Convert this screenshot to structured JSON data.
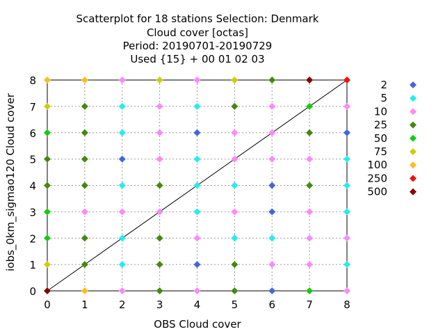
{
  "chart_data": {
    "type": "scatter",
    "title": [
      "Scatterplot for   18 stations Selection: Denmark",
      "Cloud cover [octas]",
      "Period: 20190701-20190729",
      "Used {15} + 00 01 02 03"
    ],
    "xlabel": "OBS Cloud cover",
    "ylabel": "iobs_0km_sigmao120 Cloud cover",
    "xlim": [
      0,
      8
    ],
    "ylim": [
      0,
      8
    ],
    "xticks": [
      0,
      1,
      2,
      3,
      4,
      5,
      6,
      7,
      8
    ],
    "yticks": [
      0,
      1,
      2,
      3,
      4,
      5,
      6,
      7,
      8
    ],
    "grid": true,
    "diagonal_line": true,
    "legend_position": "right",
    "legend": [
      {
        "label": "2",
        "color": "#4466dd"
      },
      {
        "label": "5",
        "color": "#22eeee"
      },
      {
        "label": "10",
        "color": "#ff88ff"
      },
      {
        "label": "25",
        "color": "#448811"
      },
      {
        "label": "50",
        "color": "#11cc11"
      },
      {
        "label": "75",
        "color": "#cccc11"
      },
      {
        "label": "100",
        "color": "#ffbb22"
      },
      {
        "label": "250",
        "color": "#ee1111"
      },
      {
        "label": "500",
        "color": "#880000"
      }
    ],
    "points": [
      [
        0,
        8,
        6
      ],
      [
        0,
        7,
        5
      ],
      [
        0,
        6,
        4
      ],
      [
        0,
        5,
        3
      ],
      [
        0,
        4,
        3
      ],
      [
        0,
        3,
        4
      ],
      [
        0,
        2,
        4
      ],
      [
        0,
        1,
        5
      ],
      [
        0,
        0,
        8
      ],
      [
        1,
        8,
        6
      ],
      [
        1,
        7,
        3
      ],
      [
        1,
        6,
        3
      ],
      [
        1,
        5,
        3
      ],
      [
        1,
        4,
        3
      ],
      [
        1,
        3,
        2
      ],
      [
        1,
        2,
        3
      ],
      [
        1,
        1,
        3
      ],
      [
        1,
        0,
        6
      ],
      [
        2,
        8,
        2
      ],
      [
        2,
        7,
        1
      ],
      [
        2,
        6,
        1
      ],
      [
        2,
        5,
        0
      ],
      [
        2,
        4,
        1
      ],
      [
        2,
        3,
        2
      ],
      [
        2,
        2,
        1
      ],
      [
        2,
        1,
        1
      ],
      [
        2,
        0,
        2
      ],
      [
        3,
        8,
        5
      ],
      [
        3,
        7,
        2
      ],
      [
        3,
        6,
        2
      ],
      [
        3,
        5,
        2
      ],
      [
        3,
        4,
        3
      ],
      [
        3,
        3,
        2
      ],
      [
        3,
        2,
        3
      ],
      [
        3,
        1,
        3
      ],
      [
        3,
        0,
        3
      ],
      [
        4,
        8,
        2
      ],
      [
        4,
        7,
        1
      ],
      [
        4,
        6,
        0
      ],
      [
        4,
        5,
        1
      ],
      [
        4,
        4,
        1
      ],
      [
        4,
        3,
        1
      ],
      [
        4,
        2,
        2
      ],
      [
        4,
        1,
        0
      ],
      [
        4,
        0,
        2
      ],
      [
        5,
        8,
        5
      ],
      [
        5,
        7,
        3
      ],
      [
        5,
        6,
        2
      ],
      [
        5,
        5,
        2
      ],
      [
        5,
        4,
        1
      ],
      [
        5,
        3,
        2
      ],
      [
        5,
        2,
        1
      ],
      [
        5,
        1,
        3
      ],
      [
        5,
        0,
        3
      ],
      [
        6,
        8,
        3
      ],
      [
        6,
        7,
        2
      ],
      [
        6,
        6,
        2
      ],
      [
        6,
        5,
        2
      ],
      [
        6,
        4,
        0
      ],
      [
        6,
        3,
        0
      ],
      [
        6,
        2,
        1
      ],
      [
        6,
        1,
        2
      ],
      [
        6,
        0,
        0
      ],
      [
        7,
        8,
        8
      ],
      [
        7,
        7,
        4
      ],
      [
        7,
        6,
        3
      ],
      [
        7,
        5,
        2
      ],
      [
        7,
        4,
        3
      ],
      [
        7,
        3,
        2
      ],
      [
        7,
        2,
        2
      ],
      [
        7,
        1,
        2
      ],
      [
        7,
        0,
        4
      ],
      [
        8,
        8,
        7
      ],
      [
        8,
        7,
        2
      ],
      [
        8,
        6,
        0
      ],
      [
        8,
        5,
        1
      ],
      [
        8,
        4,
        1
      ],
      [
        8,
        3,
        1
      ],
      [
        8,
        2,
        2
      ],
      [
        8,
        1,
        1
      ],
      [
        8,
        0,
        2
      ]
    ]
  }
}
